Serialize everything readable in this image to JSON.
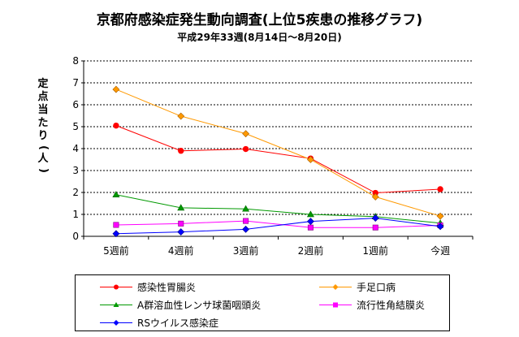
{
  "title": "京都府感染症発生動向調査(上位5疾患の推移グラフ)",
  "subtitle": "平成29年33週(8月14日～8月20日)",
  "chart_data": {
    "type": "line",
    "categories": [
      "5週前",
      "4週前",
      "3週前",
      "2週前",
      "1週前",
      "今週"
    ],
    "ylabel": "定点当たり(人)",
    "ylim": [
      0,
      8
    ],
    "yticks": [
      0,
      1,
      2,
      3,
      4,
      5,
      6,
      7,
      8
    ],
    "grid": true,
    "legend_position": "bottom",
    "series": [
      {
        "name": "感染性胃腸炎",
        "color": "#ff0000",
        "marker": "circle",
        "values": [
          5.05,
          3.9,
          3.98,
          3.55,
          1.98,
          2.15
        ]
      },
      {
        "name": "手足口病",
        "color": "#ff9900",
        "marker": "diamond",
        "values": [
          6.7,
          5.48,
          4.68,
          3.5,
          1.8,
          0.92
        ]
      },
      {
        "name": "A群溶血性レンサ球菌咽頭炎",
        "color": "#009900",
        "marker": "triangle",
        "values": [
          1.9,
          1.3,
          1.25,
          1.0,
          0.9,
          0.6
        ]
      },
      {
        "name": "流行性角結膜炎",
        "color": "#ff00ff",
        "marker": "square",
        "values": [
          0.52,
          0.58,
          0.7,
          0.4,
          0.4,
          0.5
        ]
      },
      {
        "name": "RSウイルス感染症",
        "color": "#0000ff",
        "marker": "diamond",
        "values": [
          0.12,
          0.2,
          0.32,
          0.68,
          0.83,
          0.45
        ]
      }
    ]
  }
}
